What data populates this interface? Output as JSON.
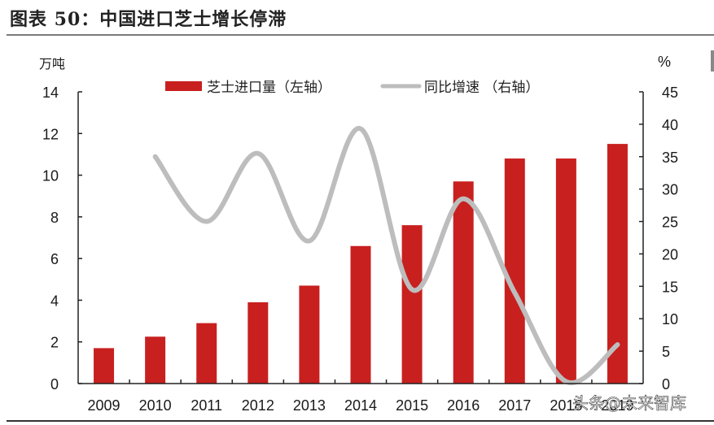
{
  "header": {
    "title": "图表 50：中国进口芝士增长停滞"
  },
  "watermark": "头条@未来智库",
  "chart_data": {
    "type": "bar",
    "title": "图表 50：中国进口芝士增长停滞",
    "categories": [
      "2009",
      "2010",
      "2011",
      "2012",
      "2013",
      "2014",
      "2015",
      "2016",
      "2017",
      "2018",
      "2019"
    ],
    "xlabel": "",
    "ylabel": "万吨",
    "y2label": "%",
    "ylim": [
      0,
      14
    ],
    "y2lim": [
      0,
      45
    ],
    "yticks": [
      0,
      2,
      4,
      6,
      8,
      10,
      12,
      14
    ],
    "y2ticks": [
      0,
      5,
      10,
      15,
      20,
      25,
      30,
      35,
      40,
      45
    ],
    "grid": false,
    "legend_position": "top",
    "series": [
      {
        "name": "芝士进口量（左轴）",
        "type": "bar",
        "axis": "left",
        "color": "#c8201f",
        "values": [
          1.7,
          2.25,
          2.9,
          3.9,
          4.7,
          6.6,
          7.6,
          9.7,
          10.8,
          10.8,
          11.5
        ]
      },
      {
        "name": "同比增速 （右轴）",
        "type": "line",
        "axis": "right",
        "smooth": true,
        "color": "#bdbdbd",
        "values": [
          null,
          35.0,
          25.0,
          35.5,
          22.0,
          39.3,
          14.5,
          28.5,
          14.0,
          0.3,
          6.0
        ]
      }
    ]
  }
}
